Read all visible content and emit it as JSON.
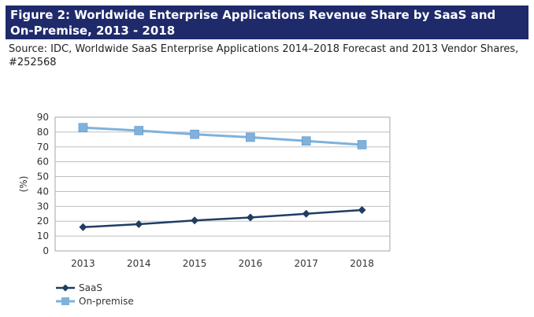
{
  "figure": {
    "title": "Figure 2: Worldwide Enterprise Applications Revenue Share by SaaS and On-Premise, 2013 - 2018",
    "source": "Source: IDC, Worldwide SaaS Enterprise Applications 2014–2018 Forecast and 2013 Vendor Shares, #252568"
  },
  "colors": {
    "title_bg": "#1f2a6b",
    "saas": "#1f3d63",
    "on_premise": "#7fb1dc"
  },
  "chart_data": {
    "type": "line",
    "x": [
      "2013",
      "2014",
      "2015",
      "2016",
      "2017",
      "2018"
    ],
    "series": [
      {
        "name": "SaaS",
        "values": [
          16,
          18,
          20.5,
          22.5,
          25,
          27.5
        ],
        "marker": "diamond"
      },
      {
        "name": "On-premise",
        "values": [
          83,
          81,
          78.5,
          76.5,
          74,
          71.5
        ],
        "marker": "square"
      }
    ],
    "title": "",
    "xlabel": "",
    "ylabel": "(%)",
    "ylim": [
      0,
      90
    ],
    "yticks": [
      0,
      10,
      20,
      30,
      40,
      50,
      60,
      70,
      80,
      90
    ],
    "grid": true,
    "legend": "bottom-left"
  }
}
